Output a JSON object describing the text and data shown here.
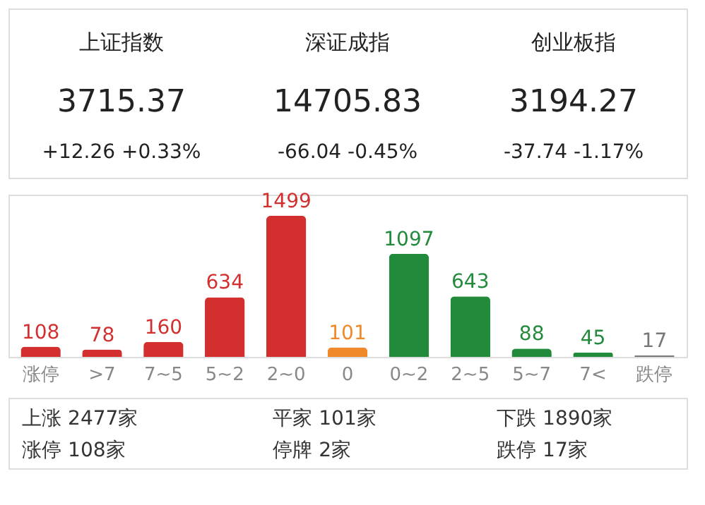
{
  "chart_data": {
    "type": "bar",
    "categories": [
      "涨停",
      ">7",
      "7~5",
      "5~2",
      "2~0",
      "0",
      "0~2",
      "2~5",
      "5~7",
      "7<",
      "跌停"
    ],
    "values": [
      108,
      78,
      160,
      634,
      1499,
      101,
      1097,
      643,
      88,
      45,
      17
    ],
    "colors": [
      "#d32f2f",
      "#d32f2f",
      "#d32f2f",
      "#d32f2f",
      "#d32f2f",
      "#f0892a",
      "#228b3b",
      "#228b3b",
      "#228b3b",
      "#228b3b",
      "#777777"
    ],
    "data_labels": true,
    "grid": false,
    "annotations": [
      "上证指数",
      "3715.37",
      "+12.26  +0.33%",
      "深证成指",
      "14705.83",
      "-66.04  -0.45%",
      "创业板指",
      "3194.27",
      "-37.74  -1.17%",
      "上涨 2477家",
      "平家 101家",
      "下跌 1890家",
      "涨停 108家",
      "停牌 2家",
      "跌停 17家"
    ]
  }
}
